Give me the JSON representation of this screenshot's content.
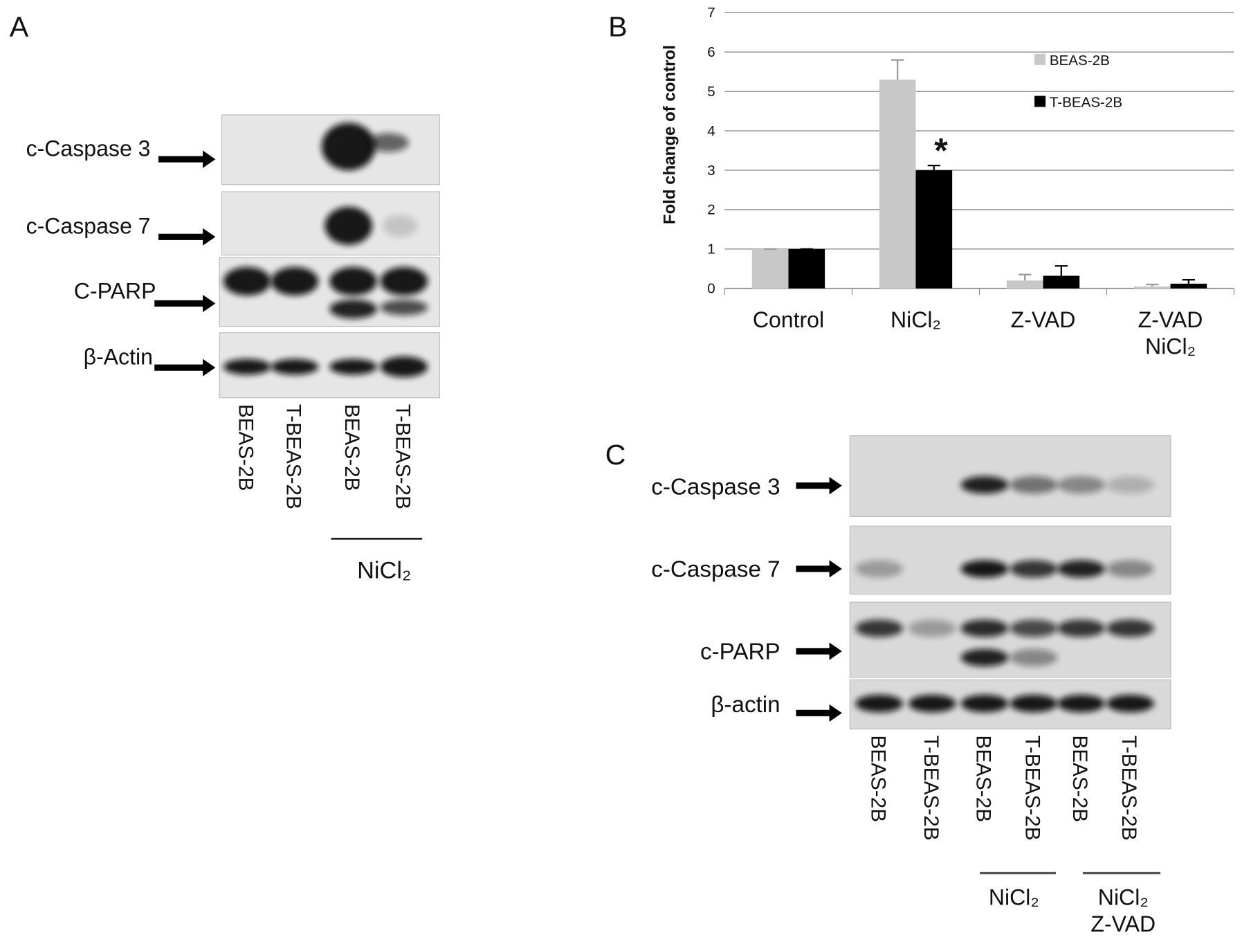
{
  "panel_a": {
    "label": "A",
    "rows": [
      "c-Caspase 3",
      "c-Caspase 7",
      "C-PARP",
      "β-Actin"
    ],
    "lanes": [
      "BEAS-2B",
      "T-BEAS-2B",
      "BEAS-2B",
      "T-BEAS-2B"
    ],
    "treatment": "NiCl₂"
  },
  "panel_b": {
    "label": "B"
  },
  "chart_data": {
    "type": "bar",
    "y_label": "Fold change of control",
    "categories": [
      "Control",
      "NiCl₂",
      "Z-VAD",
      "Z-VAD\nNiCl₂"
    ],
    "series": [
      {
        "name": "BEAS-2B",
        "color": "#c8c8c8",
        "values": [
          1,
          5.3,
          0.2,
          0.05
        ],
        "errors": [
          0,
          0.5,
          0.15,
          0.05
        ]
      },
      {
        "name": "T-BEAS-2B",
        "color": "#000000",
        "values": [
          1,
          3.0,
          0.32,
          0.12
        ],
        "errors": [
          0,
          0.12,
          0.25,
          0.1
        ]
      }
    ],
    "ylim": [
      0,
      7
    ],
    "yticks": [
      0,
      1,
      2,
      3,
      4,
      5,
      6,
      7
    ],
    "grid": true,
    "legend": "upper right",
    "annotation": "*"
  },
  "panel_c": {
    "label": "C",
    "rows": [
      "c-Caspase 3",
      "c-Caspase 7",
      "c-PARP",
      "β-actin"
    ],
    "lanes": [
      "BEAS-2B",
      "T-BEAS-2B",
      "BEAS-2B",
      "T-BEAS-2B",
      "BEAS-2B",
      "T-BEAS-2B"
    ],
    "treatments": [
      "NiCl₂",
      "NiCl₂\nZ-VAD"
    ]
  }
}
